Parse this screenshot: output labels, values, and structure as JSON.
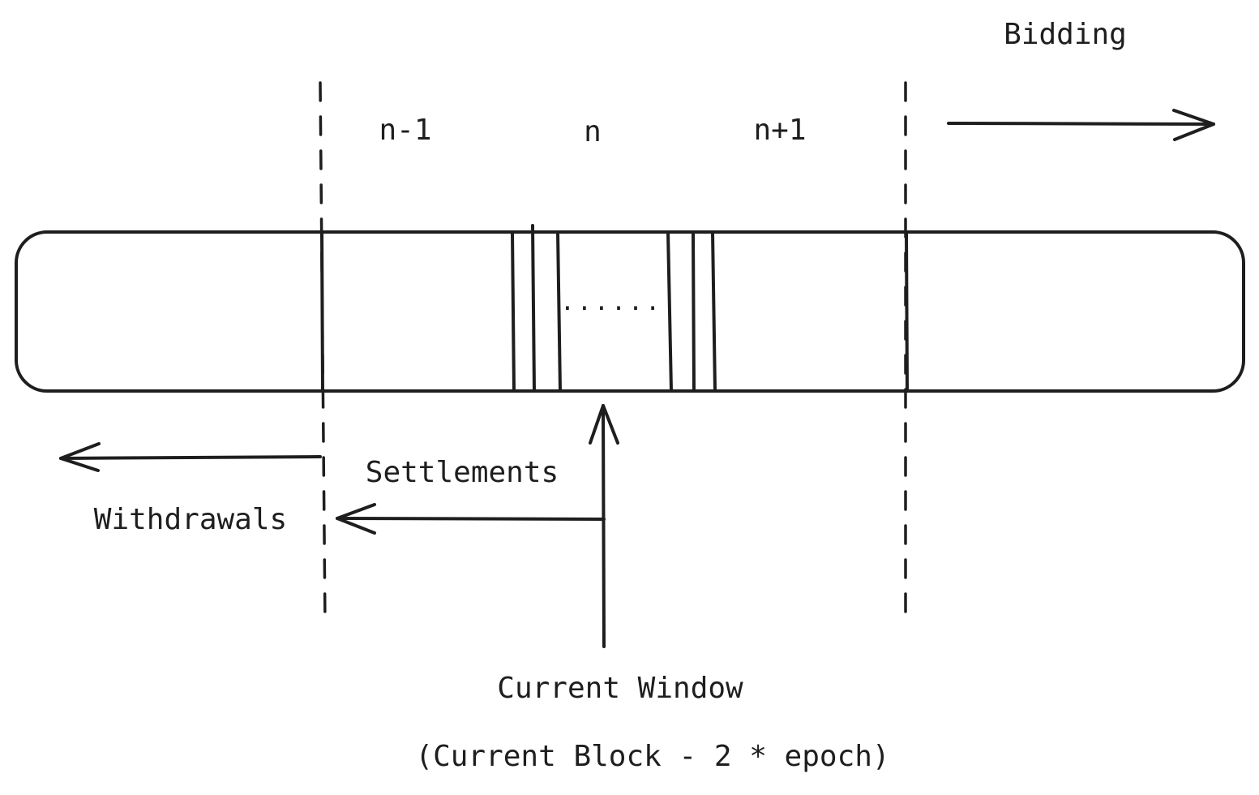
{
  "labels": {
    "bidding": "Bidding",
    "epoch_prev": "n-1",
    "epoch_current": "n",
    "epoch_next": "n+1",
    "settlements": "Settlements",
    "withdrawals": "Withdrawals",
    "current_window": "Current Window",
    "current_window_formula": "(Current Block - 2 * epoch)",
    "ellipsis": "......"
  },
  "colors": {
    "ink": "#1e1e1e",
    "background": "#ffffff"
  }
}
